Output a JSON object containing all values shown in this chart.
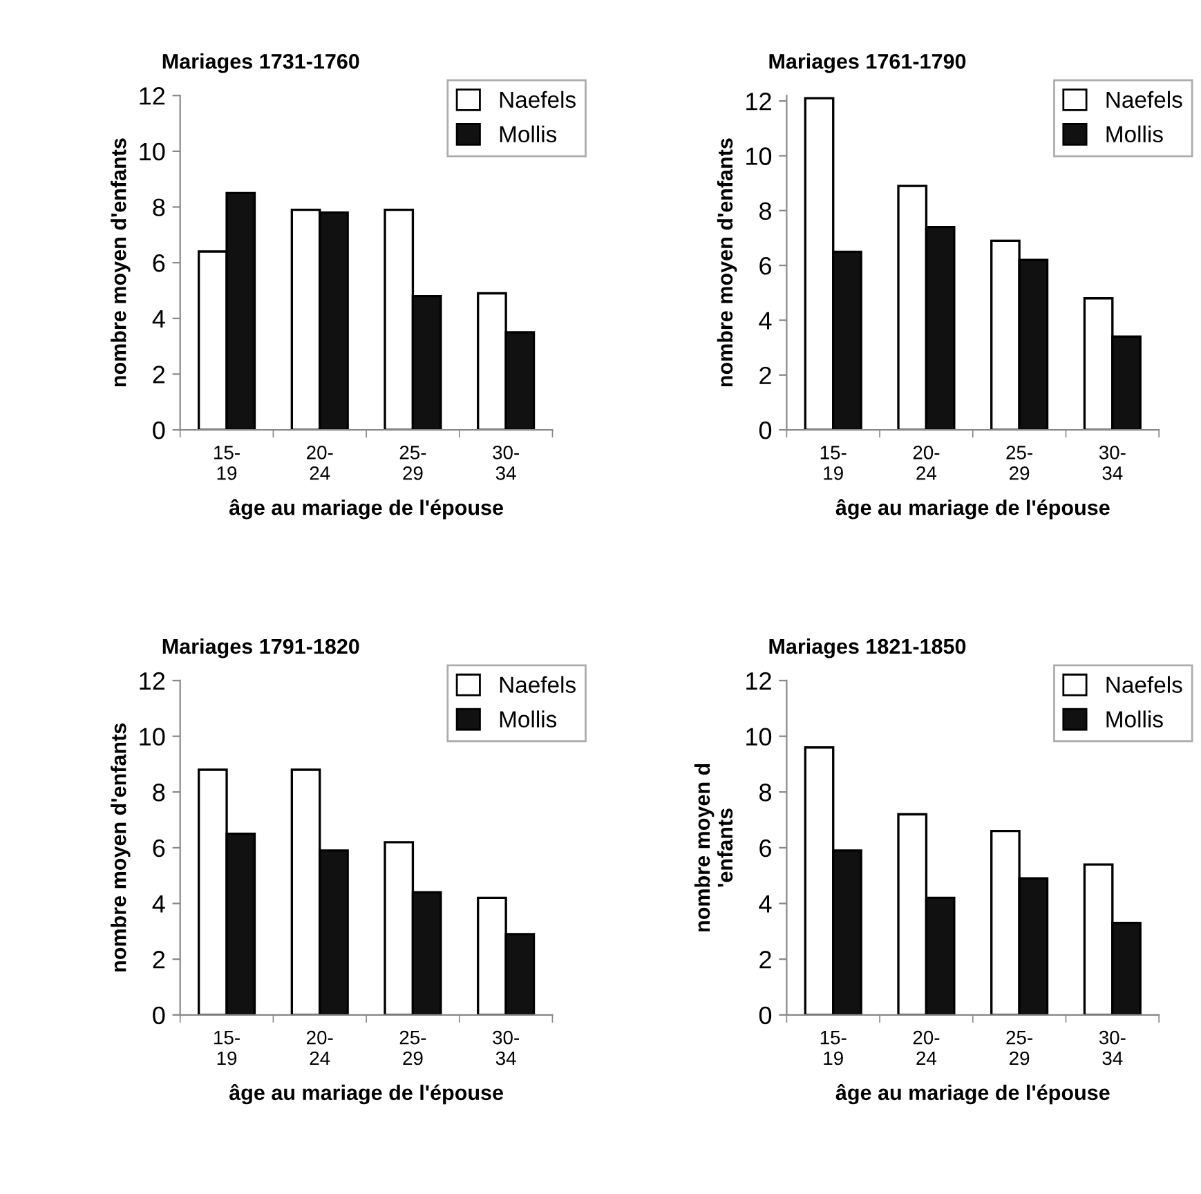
{
  "chart_data": [
    {
      "type": "bar",
      "title": "Mariages 1731-1760",
      "xlabel": "âge au mariage de l'épouse",
      "ylabel": "nombre moyen d'enfants",
      "categories": [
        "15-\n19",
        "20-\n24",
        "25-\n29",
        "30-\n34"
      ],
      "ylim": [
        0,
        12
      ],
      "yticks": [
        0,
        2,
        4,
        6,
        8,
        10,
        12
      ],
      "legend": "top right",
      "grid": false,
      "series": [
        {
          "name": "Naefels",
          "color": "#ffffff",
          "values": [
            6.4,
            7.9,
            7.9,
            4.9
          ]
        },
        {
          "name": "Mollis",
          "color": "#111111",
          "values": [
            8.5,
            7.8,
            4.8,
            3.5
          ]
        }
      ]
    },
    {
      "type": "bar",
      "title": "Mariages 1761-1790",
      "xlabel": "âge au mariage de l'épouse",
      "ylabel": "nombre moyen d'enfants",
      "categories": [
        "15-\n19",
        "20-\n24",
        "25-\n29",
        "30-\n34"
      ],
      "ylim": [
        0,
        12.2
      ],
      "yticks": [
        0,
        2,
        4,
        6,
        8,
        10,
        12
      ],
      "legend": "top right",
      "grid": false,
      "series": [
        {
          "name": "Naefels",
          "color": "#ffffff",
          "values": [
            12.1,
            8.9,
            6.9,
            4.8
          ]
        },
        {
          "name": "Mollis",
          "color": "#111111",
          "values": [
            6.5,
            7.4,
            6.2,
            3.4
          ]
        }
      ]
    },
    {
      "type": "bar",
      "title": "Mariages 1791-1820",
      "xlabel": "âge au mariage de l'épouse",
      "ylabel": "nombre moyen d'enfants",
      "categories": [
        "15-\n19",
        "20-\n24",
        "25-\n29",
        "30-\n34"
      ],
      "ylim": [
        0,
        12
      ],
      "yticks": [
        0,
        2,
        4,
        6,
        8,
        10,
        12
      ],
      "legend": "top right",
      "grid": false,
      "series": [
        {
          "name": "Naefels",
          "color": "#ffffff",
          "values": [
            8.8,
            8.8,
            6.2,
            4.2
          ]
        },
        {
          "name": "Mollis",
          "color": "#111111",
          "values": [
            6.5,
            5.9,
            4.4,
            2.9
          ]
        }
      ]
    },
    {
      "type": "bar",
      "title": "Mariages 1821-1850",
      "xlabel": "âge au mariage de l'épouse",
      "ylabel": "nombre moyen d\n'enfants",
      "categories": [
        "15-\n19",
        "20-\n24",
        "25-\n29",
        "30-\n34"
      ],
      "ylim": [
        0,
        12
      ],
      "yticks": [
        0,
        2,
        4,
        6,
        8,
        10,
        12
      ],
      "legend": "top right",
      "grid": false,
      "series": [
        {
          "name": "Naefels",
          "color": "#ffffff",
          "values": [
            9.6,
            7.2,
            6.6,
            5.4
          ]
        },
        {
          "name": "Mollis",
          "color": "#111111",
          "values": [
            5.9,
            4.2,
            4.9,
            3.3
          ]
        }
      ]
    }
  ]
}
